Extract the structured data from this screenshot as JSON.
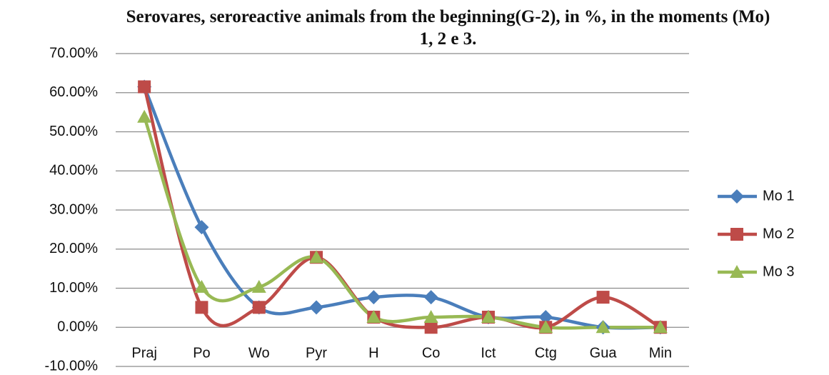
{
  "chart_data": {
    "type": "line",
    "title": "Serovares, seroreactive animals from the beginning(G-2), in %, in the moments (Mo) 1, 2 e 3.",
    "categories": [
      "Praj",
      "Po",
      "Wo",
      "Pyr",
      "H",
      "Co",
      "Ict",
      "Ctg",
      "Gua",
      "Min"
    ],
    "series": [
      {
        "name": "Mo 1",
        "color": "#4a7ebb",
        "marker": "diamond",
        "values": [
          61.5,
          25.6,
          5.1,
          5.1,
          7.7,
          7.7,
          2.6,
          2.6,
          0,
          0
        ]
      },
      {
        "name": "Mo 2",
        "color": "#be4b48",
        "marker": "square",
        "values": [
          61.5,
          5.1,
          5.1,
          17.9,
          2.6,
          0,
          2.6,
          0,
          7.7,
          0
        ]
      },
      {
        "name": "Mo 3",
        "color": "#98b954",
        "marker": "triangle",
        "values": [
          53.8,
          10.3,
          10.3,
          17.9,
          2.6,
          2.6,
          2.6,
          0,
          0,
          0
        ]
      }
    ],
    "smooth": true,
    "ylim": [
      -10,
      70
    ],
    "yticks": [
      {
        "value": -10,
        "label": "-10.00%"
      },
      {
        "value": 0,
        "label": "0.00%"
      },
      {
        "value": 10,
        "label": "10.00%"
      },
      {
        "value": 20,
        "label": "20.00%"
      },
      {
        "value": 30,
        "label": "30.00%"
      },
      {
        "value": 40,
        "label": "40.00%"
      },
      {
        "value": 50,
        "label": "50.00%"
      },
      {
        "value": 60,
        "label": "60.00%"
      },
      {
        "value": 70,
        "label": "70.00%"
      }
    ],
    "grid": true,
    "legend": "right"
  }
}
